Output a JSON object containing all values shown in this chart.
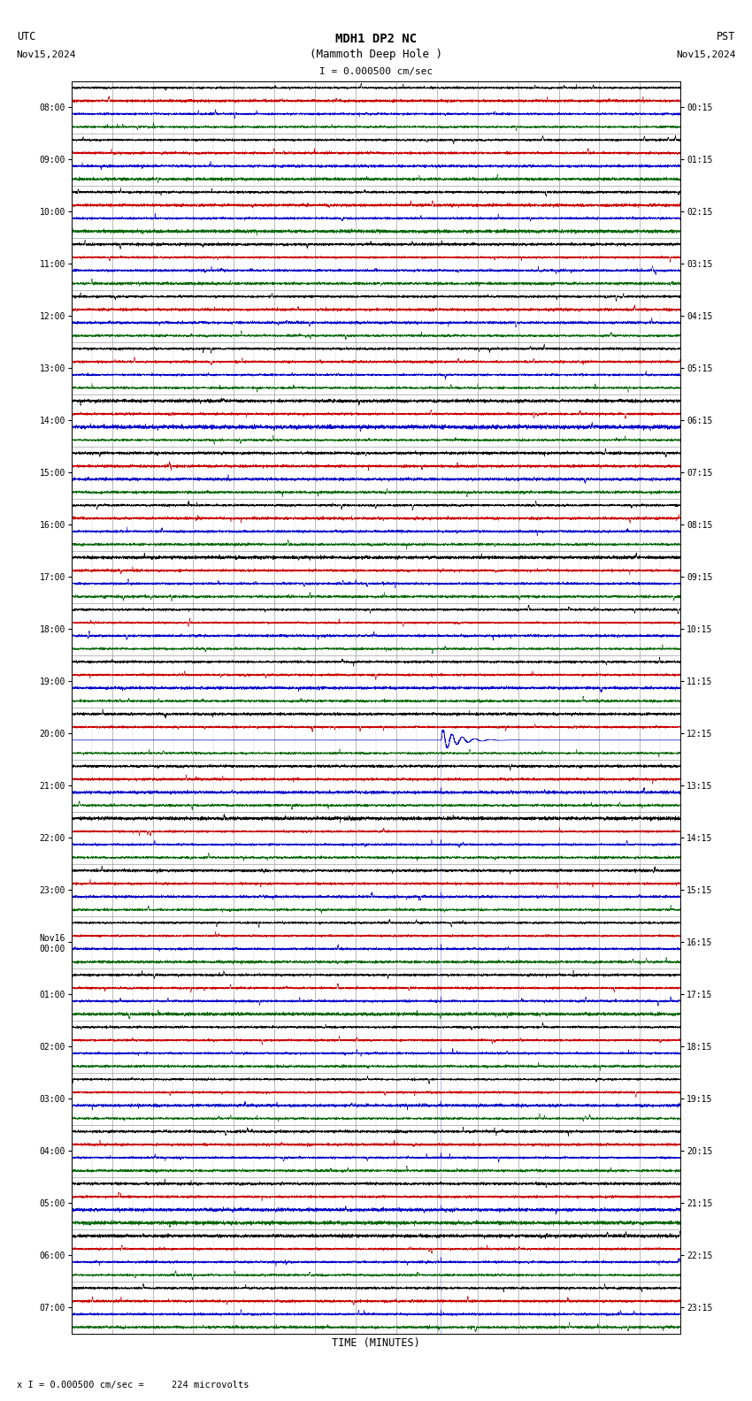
{
  "title_line1": "MDH1 DP2 NC",
  "title_line2": "(Mammoth Deep Hole )",
  "scale_label": "I = 0.000500 cm/sec",
  "left_header": "UTC",
  "left_date": "Nov15,2024",
  "right_header": "PST",
  "right_date": "Nov15,2024",
  "bottom_label": "x I = 0.000500 cm/sec =     224 microvolts",
  "xlabel": "TIME (MINUTES)",
  "utc_times": [
    "08:00",
    "09:00",
    "10:00",
    "11:00",
    "12:00",
    "13:00",
    "14:00",
    "15:00",
    "16:00",
    "17:00",
    "18:00",
    "19:00",
    "20:00",
    "21:00",
    "22:00",
    "23:00",
    "Nov16\n00:00",
    "01:00",
    "02:00",
    "03:00",
    "04:00",
    "05:00",
    "06:00",
    "07:00"
  ],
  "pst_times": [
    "00:15",
    "01:15",
    "02:15",
    "03:15",
    "04:15",
    "05:15",
    "06:15",
    "07:15",
    "08:15",
    "09:15",
    "10:15",
    "11:15",
    "12:15",
    "13:15",
    "14:15",
    "15:15",
    "16:15",
    "17:15",
    "18:15",
    "19:15",
    "20:15",
    "21:15",
    "22:15",
    "23:15"
  ],
  "num_rows": 24,
  "sub_traces": 4,
  "minutes": 15,
  "bg_color": "#ffffff",
  "colors": {
    "black": "#000000",
    "red": "#cc0000",
    "blue": "#0000cc",
    "green": "#006600",
    "grid": "#888888",
    "grid_minor": "#cccccc"
  },
  "sub_trace_colors": [
    "black",
    "red",
    "blue",
    "green"
  ],
  "event_row": 12,
  "event_sub": 2,
  "event_minute": 9.1,
  "noise_amp": 0.008,
  "event_amp": 0.85,
  "coda_amp": 0.4,
  "lw_trace": 0.35,
  "lw_event": 0.5,
  "lw_grid": 0.4,
  "lw_grid_minor": 0.25
}
